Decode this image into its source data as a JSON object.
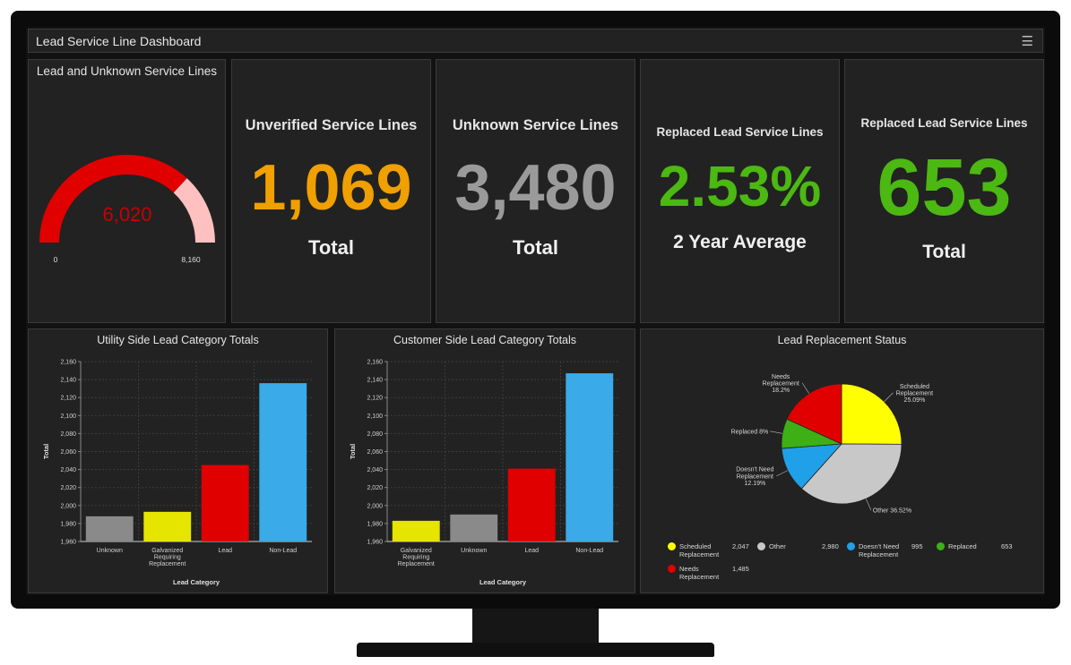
{
  "dashboard": {
    "title": "Lead Service Line Dashboard"
  },
  "gauge": {
    "title": "Lead and Unknown Service Lines",
    "value": 6020,
    "value_label": "6,020",
    "min": 0,
    "max": 8160,
    "min_label": "0",
    "max_label": "8,160",
    "fill_color": "#e00000",
    "rest_color": "#ffc0c0"
  },
  "kpis": [
    {
      "heading": "Unverified Service Lines",
      "value": "1,069",
      "subtitle": "Total",
      "color": "#f0a000"
    },
    {
      "heading": "Unknown Service Lines",
      "value": "3,480",
      "subtitle": "Total",
      "color": "#9a9a9a"
    },
    {
      "heading": "Replaced Lead Service Lines",
      "value": "2.53%",
      "subtitle": "2 Year Average",
      "color": "#4cb812"
    },
    {
      "heading": "Replaced Lead Service Lines",
      "value": "653",
      "subtitle": "Total",
      "color": "#4cb812"
    }
  ],
  "chart_data": [
    {
      "type": "bar",
      "title": "Utility Side Lead Category Totals",
      "xlabel": "Lead Category",
      "ylabel": "Total",
      "ylim": [
        1960,
        2160
      ],
      "yticks": [
        "1,960",
        "1,980",
        "2,000",
        "2,020",
        "2,040",
        "2,060",
        "2,080",
        "2,100",
        "2,120",
        "2,140",
        "2,160"
      ],
      "grid": true,
      "categories": [
        "Unknown",
        "Galvanized Requiring Replacement",
        "Lead",
        "Non-Lead"
      ],
      "values": [
        1988,
        1993,
        2045,
        2136
      ],
      "colors": [
        "#8a8a8a",
        "#e5e500",
        "#e00000",
        "#3aaae8"
      ]
    },
    {
      "type": "bar",
      "title": "Customer Side Lead Category Totals",
      "xlabel": "Lead Category",
      "ylabel": "Total",
      "ylim": [
        1960,
        2160
      ],
      "yticks": [
        "1,960",
        "1,980",
        "2,000",
        "2,020",
        "2,040",
        "2,060",
        "2,080",
        "2,100",
        "2,120",
        "2,140",
        "2,160"
      ],
      "grid": true,
      "categories": [
        "Galvanized Requiring Replacement",
        "Unknown",
        "Lead",
        "Non-Lead"
      ],
      "values": [
        1983,
        1990,
        2041,
        2147
      ],
      "colors": [
        "#e5e500",
        "#8a8a8a",
        "#e00000",
        "#3aaae8"
      ]
    },
    {
      "type": "pie",
      "title": "Lead Replacement Status",
      "slices": [
        {
          "name": "Scheduled Replacement",
          "percent": 25.09,
          "label": "Scheduled\nReplacement\n25.09%",
          "count": "2,047",
          "color": "#ffff00"
        },
        {
          "name": "Other",
          "percent": 36.52,
          "label": "Other 36.52%",
          "count": "2,980",
          "color": "#c8c8c8"
        },
        {
          "name": "Doesn't Need Replacement",
          "percent": 12.19,
          "label": "Doesn't Need\nReplacement\n12.19%",
          "count": "995",
          "color": "#20a0e8"
        },
        {
          "name": "Replaced",
          "percent": 8,
          "label": "Replaced 8%",
          "count": "653",
          "color": "#3cb014"
        },
        {
          "name": "Needs Replacement",
          "percent": 18.2,
          "label": "Needs\nReplacement\n18.2%",
          "count": "1,485",
          "color": "#e00000"
        }
      ],
      "legend": [
        {
          "name": "Scheduled\nReplacement",
          "count": "2,047",
          "color": "#ffff00"
        },
        {
          "name": "Other",
          "count": "2,980",
          "color": "#c8c8c8"
        },
        {
          "name": "Doesn't Need\nReplacement",
          "count": "995",
          "color": "#20a0e8"
        },
        {
          "name": "Replaced",
          "count": "653",
          "color": "#3cb014"
        },
        {
          "name": "Needs\nReplacement",
          "count": "1,485",
          "color": "#e00000"
        }
      ]
    }
  ]
}
